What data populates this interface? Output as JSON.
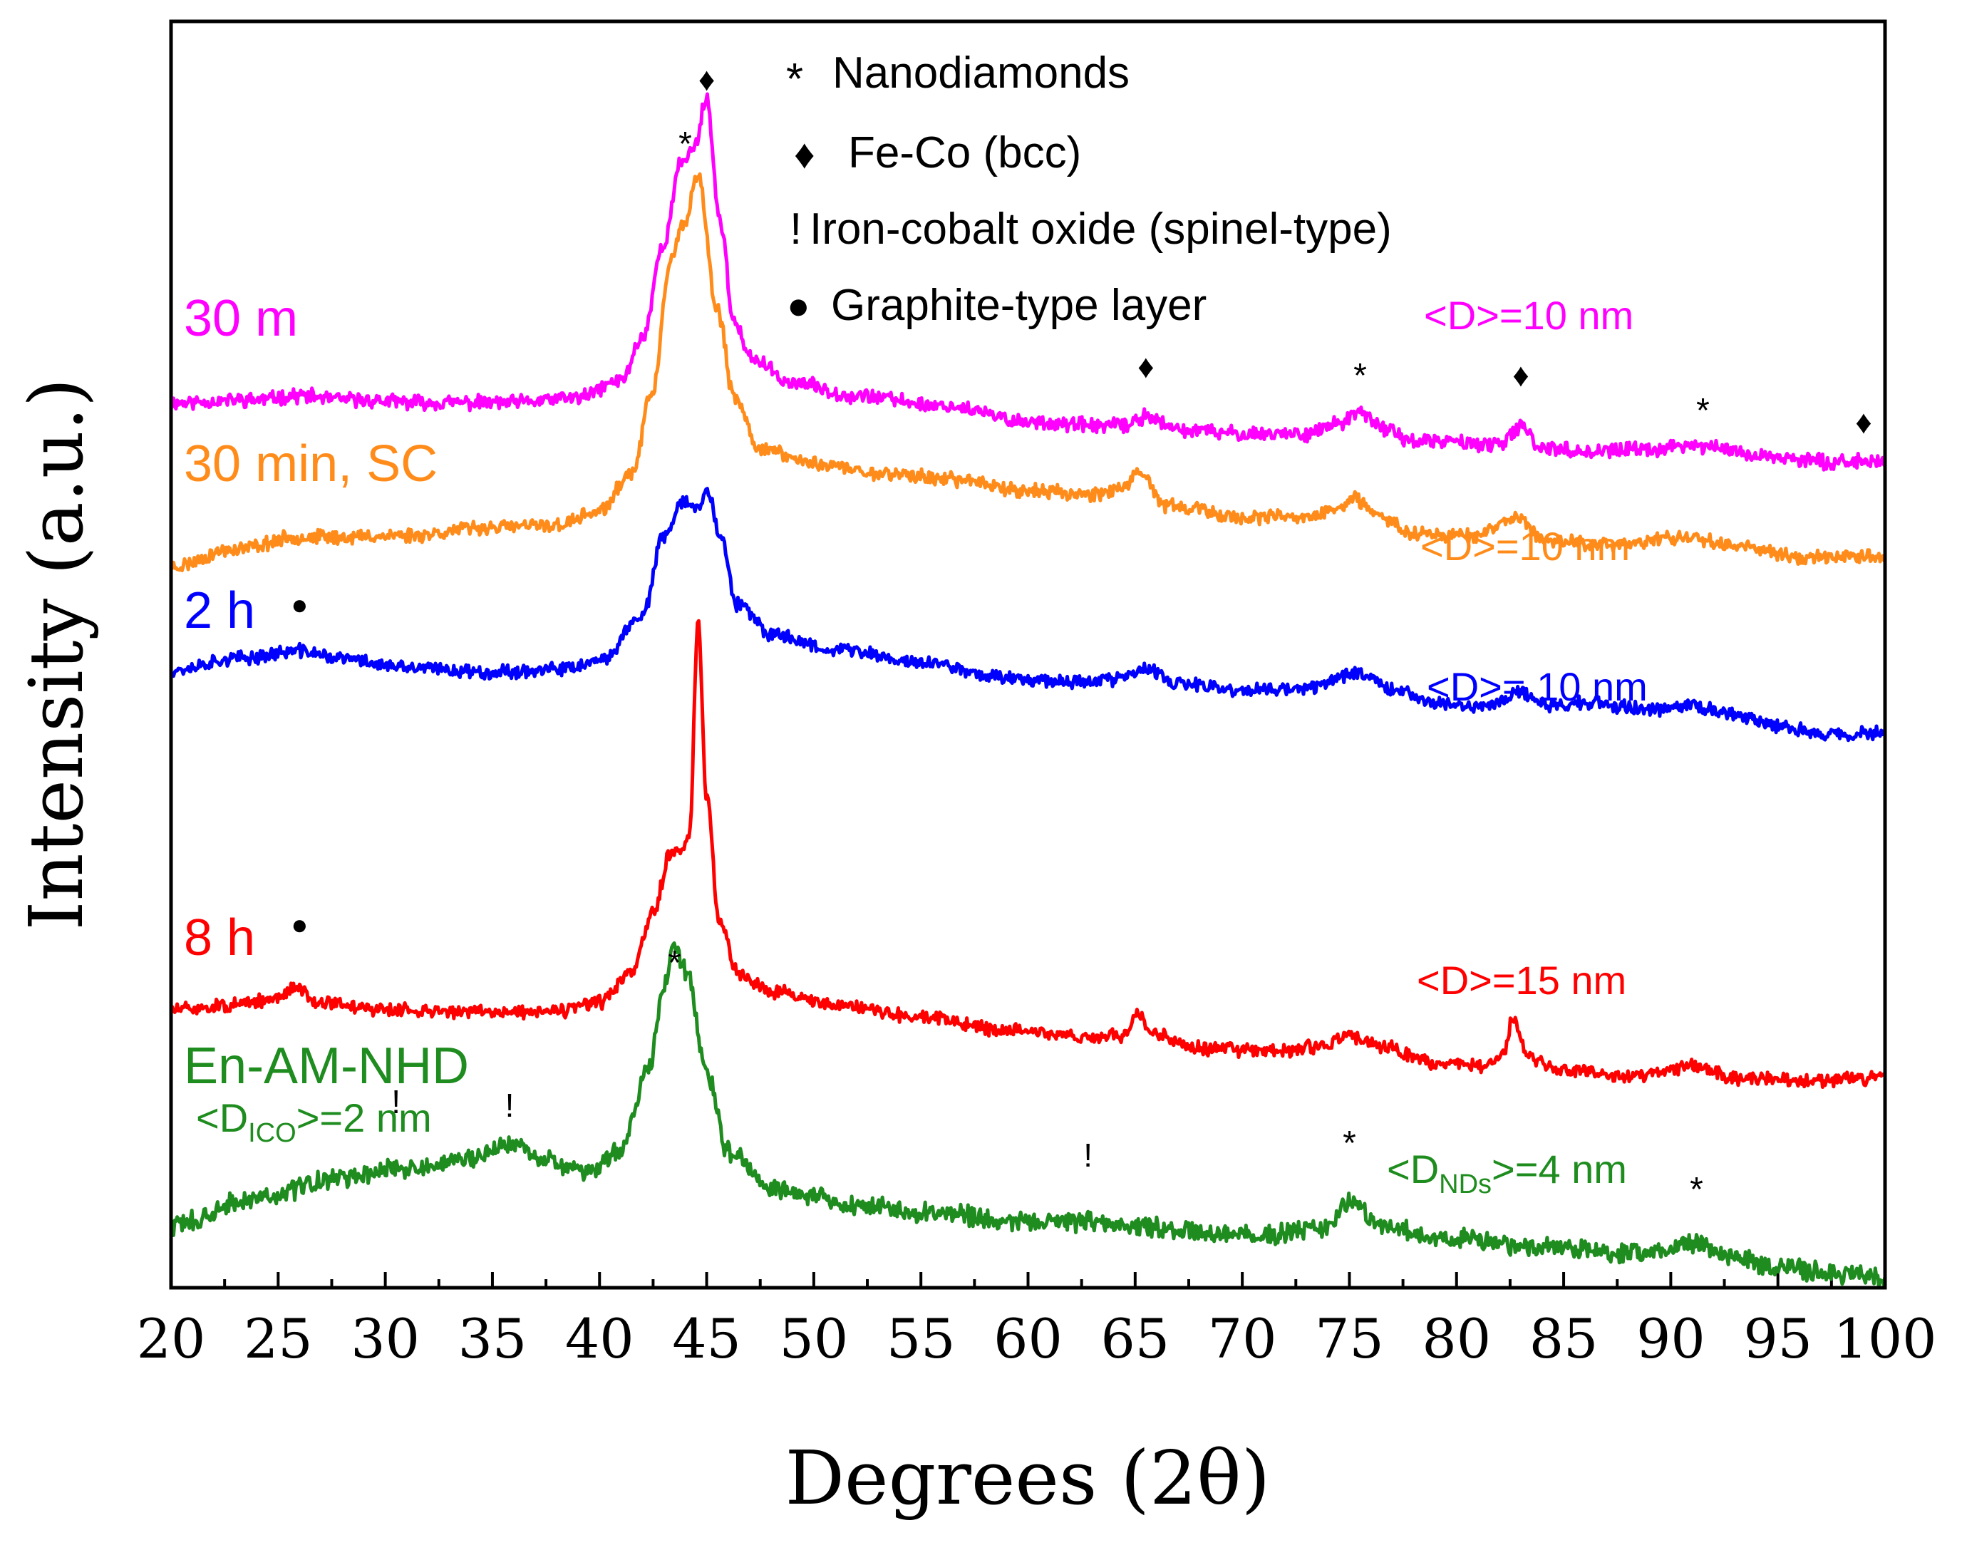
{
  "chart_data": {
    "type": "line",
    "xlabel": "Degrees (2θ)",
    "ylabel": "Intensity (a.u.)",
    "xlim": [
      20,
      100
    ],
    "xticks": [
      "20",
      "25",
      "30",
      "35",
      "40",
      "45",
      "50",
      "55",
      "60",
      "65",
      "70",
      "75",
      "80",
      "85",
      "90",
      "95",
      "100"
    ],
    "y_units": "arbitrary, offset per series",
    "legend": [
      {
        "symbol": "*",
        "text": "Nanodiamonds"
      },
      {
        "symbol": "♦",
        "text": "Fe-Co (bcc)"
      },
      {
        "symbol": "!",
        "text": "Iron-cobalt oxide (spinel-type)"
      },
      {
        "symbol": "●",
        "text": "Graphite-type layer"
      }
    ],
    "series": [
      {
        "name": "30 m",
        "color": "#ff00ff",
        "crystallite_label": "<D>=10 nm",
        "points": [
          [
            20,
            0.75
          ],
          [
            24,
            0.78
          ],
          [
            26,
            0.82
          ],
          [
            28,
            0.78
          ],
          [
            32,
            0.75
          ],
          [
            36,
            0.75
          ],
          [
            39,
            0.8
          ],
          [
            41,
            0.97
          ],
          [
            42,
            1.4
          ],
          [
            43,
            2.35
          ],
          [
            43.8,
            3.15
          ],
          [
            44.4,
            3.3
          ],
          [
            45,
            3.8
          ],
          [
            45.6,
            2.6
          ],
          [
            46.3,
            1.55
          ],
          [
            47,
            1.2
          ],
          [
            49,
            0.95
          ],
          [
            52,
            0.82
          ],
          [
            56,
            0.72
          ],
          [
            60,
            0.56
          ],
          [
            63,
            0.52
          ],
          [
            64.5,
            0.52
          ],
          [
            65.6,
            0.62
          ],
          [
            66.8,
            0.48
          ],
          [
            70,
            0.44
          ],
          [
            73,
            0.44
          ],
          [
            74.5,
            0.54
          ],
          [
            75.5,
            0.64
          ],
          [
            76.8,
            0.48
          ],
          [
            78,
            0.36
          ],
          [
            80,
            0.36
          ],
          [
            82,
            0.32
          ],
          [
            83,
            0.5
          ],
          [
            84,
            0.3
          ],
          [
            86,
            0.26
          ],
          [
            89,
            0.28
          ],
          [
            91,
            0.32
          ],
          [
            92,
            0.3
          ],
          [
            94,
            0.22
          ],
          [
            97,
            0.16
          ],
          [
            100,
            0.16
          ]
        ]
      },
      {
        "name": "30 min, SC",
        "color": "#ff8c1a",
        "crystallite_label": "<D>=10 nm",
        "points": [
          [
            20,
            0.0
          ],
          [
            23,
            0.18
          ],
          [
            26,
            0.3
          ],
          [
            28,
            0.3
          ],
          [
            31,
            0.32
          ],
          [
            35,
            0.4
          ],
          [
            38,
            0.42
          ],
          [
            40,
            0.56
          ],
          [
            41.5,
            0.95
          ],
          [
            42.5,
            1.8
          ],
          [
            43.3,
            3.1
          ],
          [
            43.9,
            3.45
          ],
          [
            44.6,
            3.95
          ],
          [
            45.5,
            2.6
          ],
          [
            46.3,
            1.7
          ],
          [
            47.5,
            1.2
          ],
          [
            50,
            1.05
          ],
          [
            53,
            0.95
          ],
          [
            57,
            0.88
          ],
          [
            60,
            0.77
          ],
          [
            63,
            0.74
          ],
          [
            64.5,
            0.8
          ],
          [
            65.2,
            0.94
          ],
          [
            66.5,
            0.62
          ],
          [
            70,
            0.5
          ],
          [
            73,
            0.5
          ],
          [
            74.5,
            0.6
          ],
          [
            75.2,
            0.68
          ],
          [
            76.5,
            0.5
          ],
          [
            78,
            0.34
          ],
          [
            81,
            0.32
          ],
          [
            82.8,
            0.5
          ],
          [
            84,
            0.28
          ],
          [
            87,
            0.22
          ],
          [
            90,
            0.28
          ],
          [
            91,
            0.3
          ],
          [
            93,
            0.22
          ],
          [
            96,
            0.1
          ],
          [
            100,
            0.1
          ]
        ]
      },
      {
        "name": "2 h",
        "color": "#0000ff",
        "crystallite_label": "<D>= 10 nm",
        "points": [
          [
            20,
            0.0
          ],
          [
            23,
            0.12
          ],
          [
            26,
            0.2
          ],
          [
            28,
            0.12
          ],
          [
            31,
            0.02
          ],
          [
            35,
            -0.02
          ],
          [
            38,
            0.0
          ],
          [
            40,
            0.08
          ],
          [
            42,
            0.58
          ],
          [
            43,
            1.42
          ],
          [
            44,
            1.8
          ],
          [
            44.6,
            1.7
          ],
          [
            45,
            1.95
          ],
          [
            45.6,
            1.45
          ],
          [
            46.4,
            0.7
          ],
          [
            48,
            0.38
          ],
          [
            51,
            0.22
          ],
          [
            55,
            0.08
          ],
          [
            59,
            -0.08
          ],
          [
            62,
            -0.12
          ],
          [
            64,
            -0.1
          ],
          [
            65.5,
            0.0
          ],
          [
            67,
            -0.15
          ],
          [
            70,
            -0.22
          ],
          [
            73,
            -0.2
          ],
          [
            74.5,
            -0.08
          ],
          [
            75.5,
            -0.02
          ],
          [
            77,
            -0.2
          ],
          [
            79,
            -0.35
          ],
          [
            81,
            -0.4
          ],
          [
            83,
            -0.25
          ],
          [
            84.5,
            -0.38
          ],
          [
            86,
            -0.35
          ],
          [
            89,
            -0.42
          ],
          [
            91,
            -0.38
          ],
          [
            92.5,
            -0.45
          ],
          [
            95,
            -0.6
          ],
          [
            97,
            -0.68
          ],
          [
            100,
            -0.68
          ]
        ]
      },
      {
        "name": "8 h",
        "color": "#ff0000",
        "crystallite_label": "<D>=15 nm",
        "points": [
          [
            20,
            0.0
          ],
          [
            23,
            0.05
          ],
          [
            25,
            0.12
          ],
          [
            25.8,
            0.25
          ],
          [
            27,
            0.08
          ],
          [
            30,
            0.0
          ],
          [
            34,
            -0.02
          ],
          [
            38,
            -0.02
          ],
          [
            40,
            0.08
          ],
          [
            41.5,
            0.4
          ],
          [
            42.5,
            1.05
          ],
          [
            43.3,
            1.7
          ],
          [
            43.9,
            1.75
          ],
          [
            44.2,
            1.9
          ],
          [
            44.6,
            4.2
          ],
          [
            45,
            2.3
          ],
          [
            45.6,
            0.95
          ],
          [
            46.5,
            0.4
          ],
          [
            48,
            0.2
          ],
          [
            51,
            0.06
          ],
          [
            55,
            -0.08
          ],
          [
            59,
            -0.22
          ],
          [
            63,
            -0.3
          ],
          [
            64.5,
            -0.28
          ],
          [
            65.1,
            -0.02
          ],
          [
            65.8,
            -0.26
          ],
          [
            68,
            -0.42
          ],
          [
            72,
            -0.45
          ],
          [
            74,
            -0.38
          ],
          [
            75,
            -0.28
          ],
          [
            76.5,
            -0.4
          ],
          [
            79,
            -0.58
          ],
          [
            81,
            -0.62
          ],
          [
            82.2,
            -0.5
          ],
          [
            82.6,
            -0.12
          ],
          [
            83.4,
            -0.52
          ],
          [
            85,
            -0.66
          ],
          [
            88,
            -0.72
          ],
          [
            91,
            -0.62
          ],
          [
            93,
            -0.74
          ],
          [
            96,
            -0.78
          ],
          [
            99,
            -0.75
          ],
          [
            100,
            -0.68
          ]
        ]
      },
      {
        "name": "En-AM-NHD",
        "color": "#1e8c1e",
        "crystallite_label_parts": [
          "<D",
          "ICO",
          ">=2 nm"
        ],
        "crystallite_label_parts_2": [
          "<D",
          "NDs",
          ">=4 nm"
        ],
        "points": [
          [
            20,
            0.0
          ],
          [
            24,
            0.2
          ],
          [
            28,
            0.35
          ],
          [
            31,
            0.42
          ],
          [
            34,
            0.48
          ],
          [
            35.8,
            0.6
          ],
          [
            37.5,
            0.48
          ],
          [
            39.5,
            0.4
          ],
          [
            41,
            0.56
          ],
          [
            42.3,
            1.15
          ],
          [
            43,
            1.75
          ],
          [
            43.5,
            2.05
          ],
          [
            44.1,
            1.85
          ],
          [
            45,
            1.1
          ],
          [
            46,
            0.55
          ],
          [
            48,
            0.28
          ],
          [
            52,
            0.15
          ],
          [
            56,
            0.08
          ],
          [
            60,
            0.04
          ],
          [
            63,
            0.03
          ],
          [
            65,
            0.0
          ],
          [
            68,
            -0.06
          ],
          [
            72,
            -0.06
          ],
          [
            74,
            0.0
          ],
          [
            75,
            0.18
          ],
          [
            76.5,
            0.0
          ],
          [
            79,
            -0.08
          ],
          [
            83,
            -0.14
          ],
          [
            86,
            -0.18
          ],
          [
            89,
            -0.2
          ],
          [
            91,
            -0.12
          ],
          [
            92.5,
            -0.22
          ],
          [
            95,
            -0.3
          ],
          [
            98,
            -0.36
          ],
          [
            100,
            -0.38
          ]
        ]
      }
    ],
    "marker_annotations": [
      {
        "symbol": "♦",
        "x": 45
      },
      {
        "symbol": "*",
        "x": 44
      },
      {
        "symbol": "♦",
        "x": 65.5
      },
      {
        "symbol": "*",
        "x": 75.5
      },
      {
        "symbol": "♦",
        "x": 83
      },
      {
        "symbol": "*",
        "x": 91.5
      },
      {
        "symbol": "♦",
        "x": 99
      },
      {
        "symbol": "●",
        "x": 26
      },
      {
        "symbol": "●",
        "x": 26
      },
      {
        "symbol": "*",
        "x": 43.5
      },
      {
        "symbol": "!",
        "x": 30.5
      },
      {
        "symbol": "!",
        "x": 35.8
      },
      {
        "symbol": "!",
        "x": 62.8
      },
      {
        "symbol": "*",
        "x": 75
      },
      {
        "symbol": "*",
        "x": 91.2
      }
    ]
  }
}
